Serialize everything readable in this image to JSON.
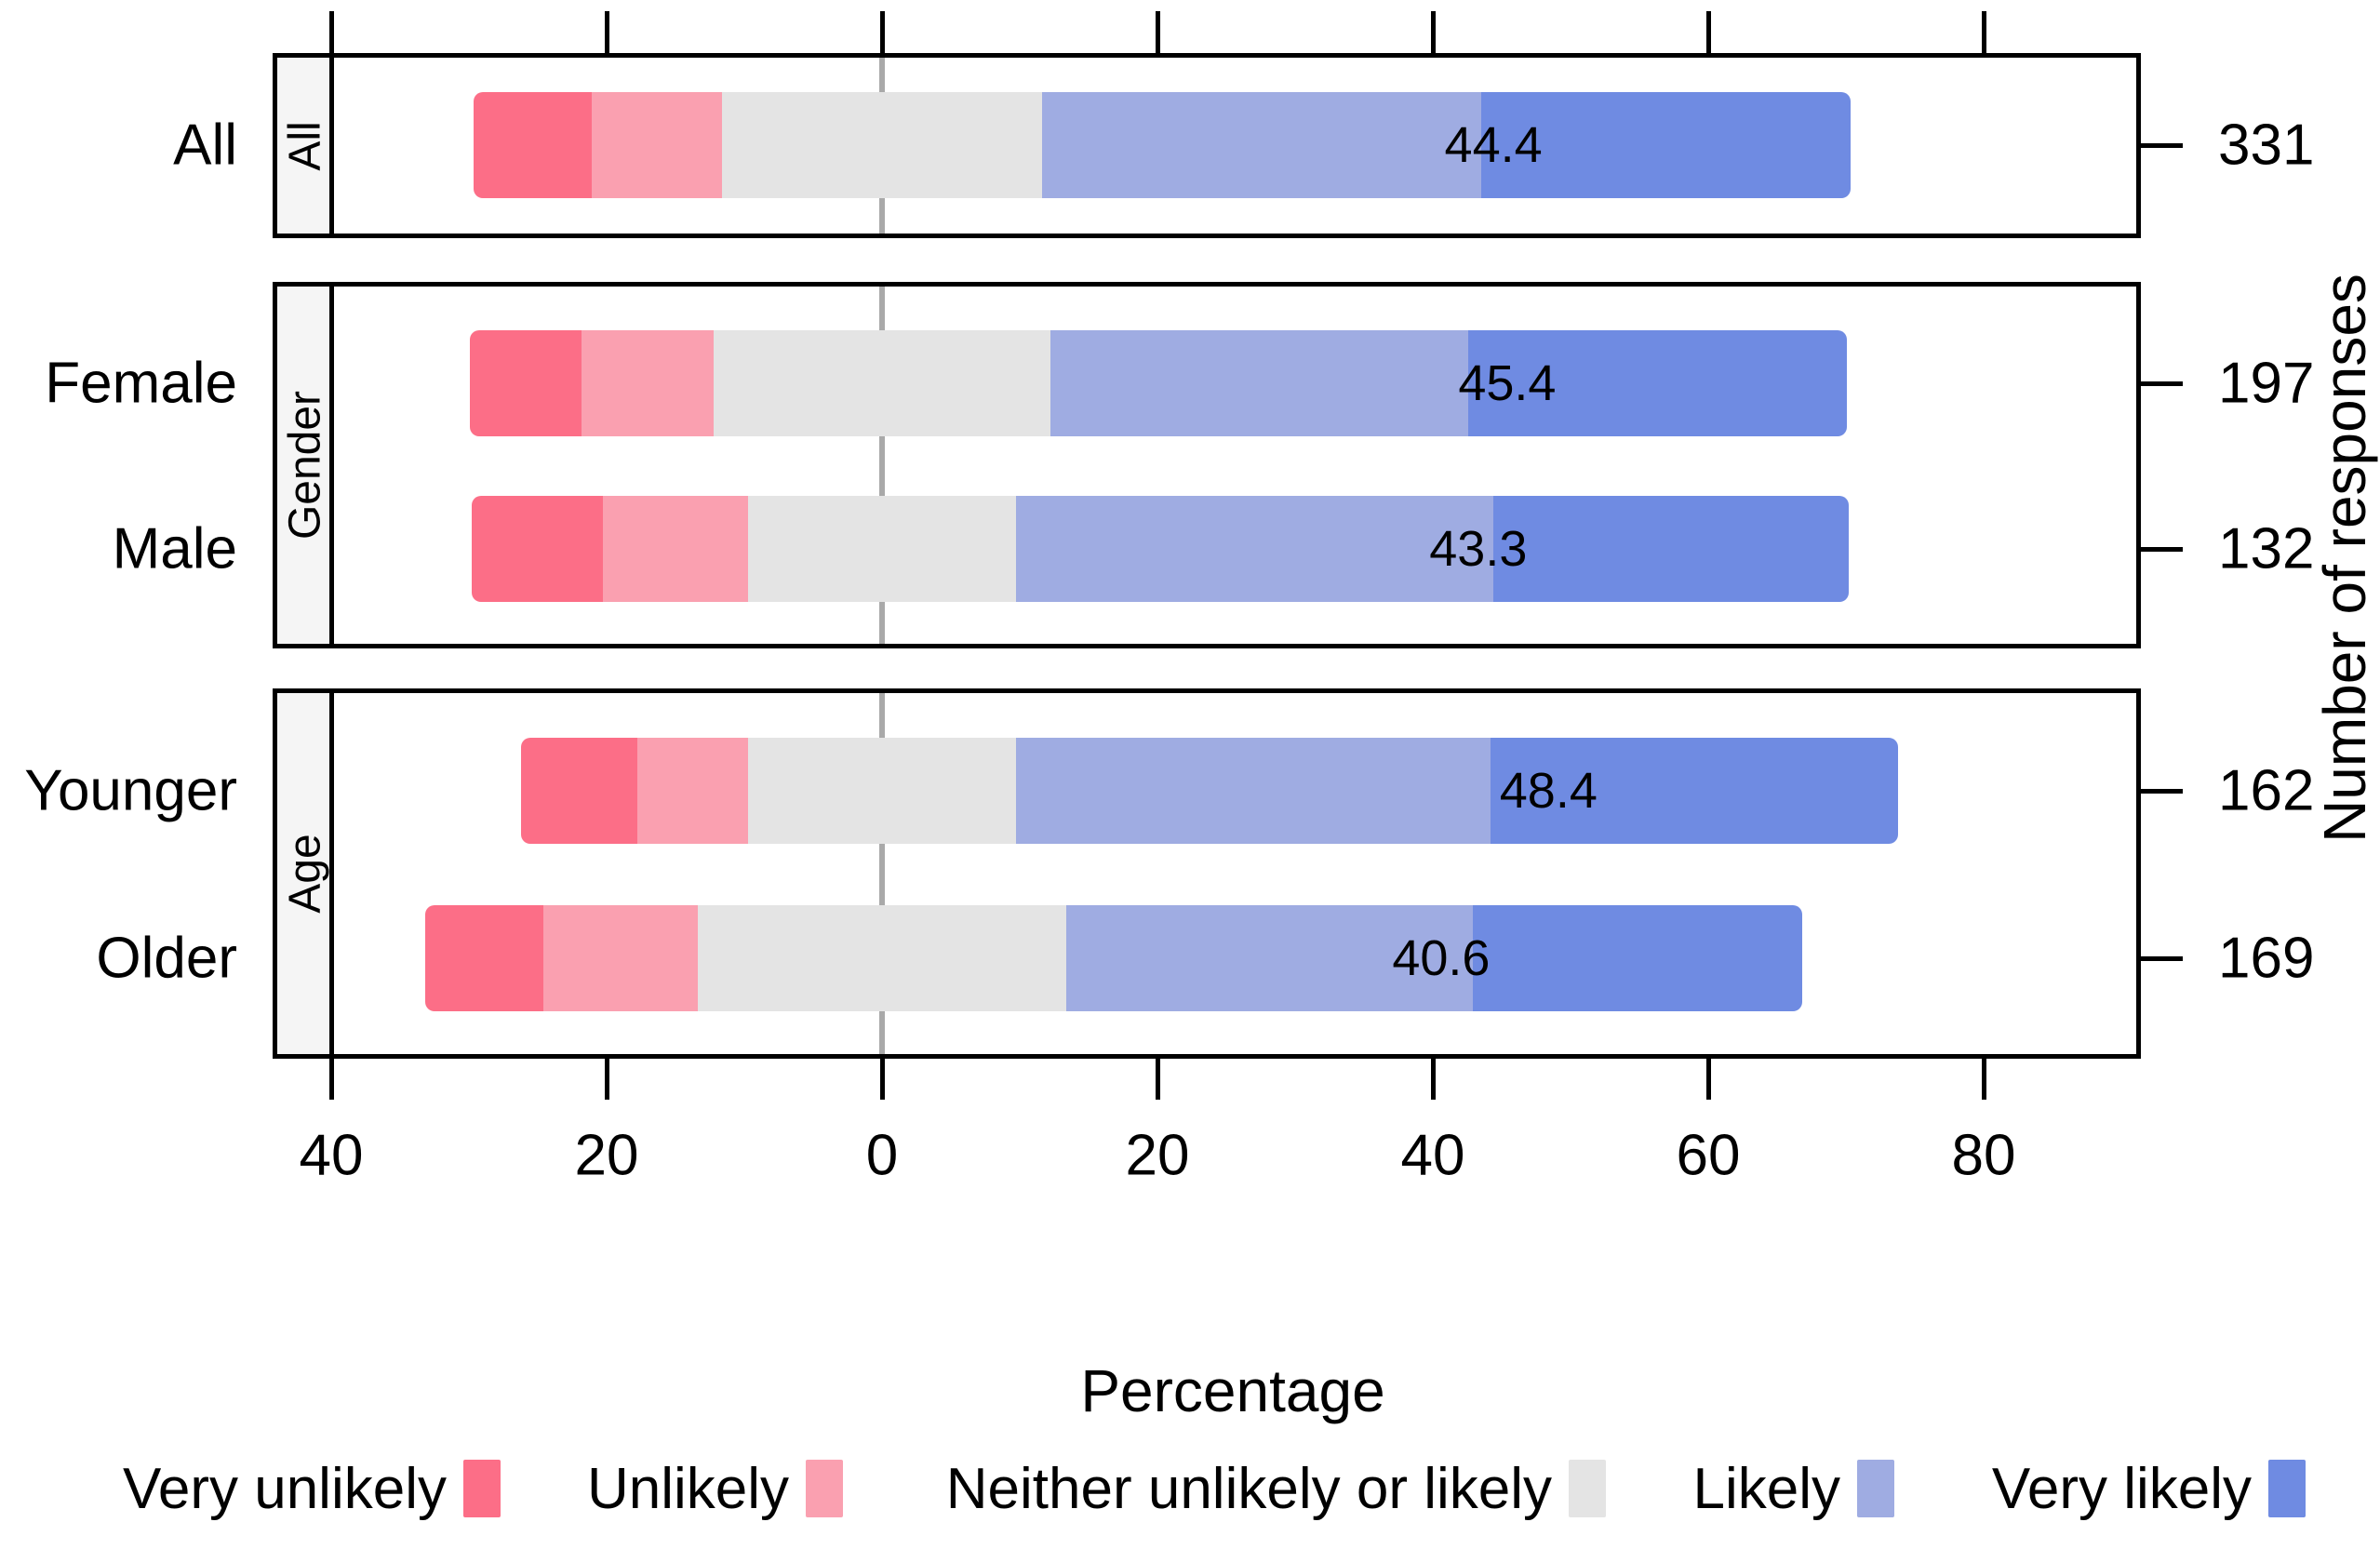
{
  "chart_data": {
    "type": "bar",
    "variant": "diverging-stacked-likert",
    "xlabel": "Percentage",
    "right_axis_label": "Number of responses",
    "x_tick_values": [
      -40,
      -20,
      0,
      20,
      40,
      60,
      80
    ],
    "x_tick_labels": [
      "40",
      "20",
      "0",
      "20",
      "40",
      "60",
      "80"
    ],
    "xlim": [
      -44.3,
      91.5
    ],
    "categories": [
      "Very unlikely",
      "Unlikely",
      "Neither unlikely or likely",
      "Likely",
      "Very likely"
    ],
    "colors": {
      "very_unlikely": "#FC6E87",
      "unlikely": "#FAA0B0",
      "neither": "#E4E4E4",
      "likely": "#9FACE2",
      "very_likely": "#6F8BE2",
      "zero_line": "#A9A9A9",
      "strip_bg": "#F5F5F5",
      "border": "#000000"
    },
    "panels": [
      {
        "strip": "All",
        "rows": [
          {
            "label": "All",
            "n": "331",
            "values": [
              8.6,
              9.4,
              23.3,
              31.9,
              26.8
            ],
            "annotation": 44.4,
            "annotation_text": "44.4"
          }
        ]
      },
      {
        "strip": "Gender",
        "rows": [
          {
            "label": "Female",
            "n": "197",
            "values": [
              8.1,
              9.6,
              24.4,
              30.4,
              27.5
            ],
            "annotation": 45.4,
            "annotation_text": "45.4"
          },
          {
            "label": "Male",
            "n": "132",
            "values": [
              9.5,
              10.6,
              19.4,
              34.7,
              25.8
            ],
            "annotation": 43.3,
            "annotation_text": "43.3"
          }
        ]
      },
      {
        "strip": "Age",
        "rows": [
          {
            "label": "Younger",
            "n": "162",
            "values": [
              8.4,
              8.1,
              19.4,
              34.5,
              29.6
            ],
            "annotation": 48.4,
            "annotation_text": "48.4"
          },
          {
            "label": "Older",
            "n": "169",
            "values": [
              8.6,
              11.2,
              26.8,
              29.5,
              23.9
            ],
            "annotation": 40.6,
            "annotation_text": "40.6"
          }
        ]
      }
    ],
    "legend": [
      {
        "label": "Very unlikely",
        "color_key": "very_unlikely"
      },
      {
        "label": "Unlikely",
        "color_key": "unlikely"
      },
      {
        "label": "Neither unlikely or likely",
        "color_key": "neither"
      },
      {
        "label": "Likely",
        "color_key": "likely"
      },
      {
        "label": "Very likely",
        "color_key": "very_likely"
      }
    ]
  }
}
